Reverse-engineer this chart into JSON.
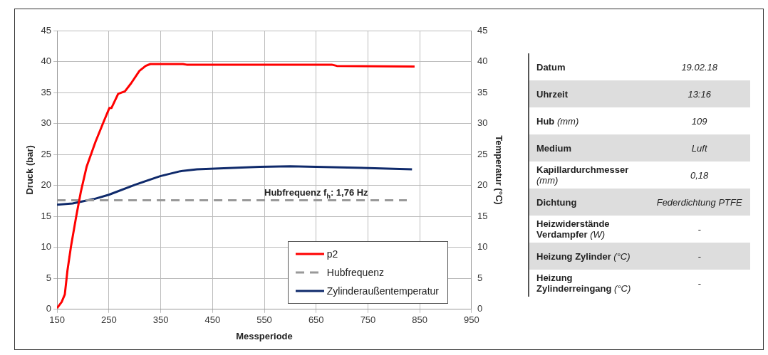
{
  "chart_data": [
    {
      "type": "line",
      "xlabel": "Messperiode",
      "ylabel": "Druck (bar)",
      "y2label": "Temperatur (°C)",
      "xlim": [
        150,
        950
      ],
      "xticks": [
        150,
        250,
        350,
        450,
        550,
        650,
        750,
        850,
        950
      ],
      "ylim": [
        0,
        45
      ],
      "yticks": [
        0,
        5,
        10,
        15,
        20,
        25,
        30,
        35,
        40,
        45
      ],
      "y2lim": [
        0,
        45
      ],
      "y2ticks": [
        0,
        5,
        10,
        15,
        20,
        25,
        30,
        35,
        40,
        45
      ],
      "grid": true,
      "legend": "bottom right",
      "marker": "none",
      "annotations": [
        {
          "text": "Hubfrequenz f$_{h}$: 1,76 Hz",
          "x": 550,
          "y": 17.6
        }
      ],
      "series": [
        {
          "name": "p2",
          "color": "#ff0000",
          "x": [
            150,
            159,
            165,
            170,
            177,
            187,
            196,
            207,
            224,
            240,
            251,
            255,
            268,
            281,
            293,
            309,
            321,
            330,
            393,
            400,
            680,
            690,
            840
          ],
          "values": [
            0.2,
            1.2,
            2.4,
            6.2,
            10.2,
            15,
            19,
            23,
            27,
            30.3,
            32.5,
            32.5,
            34.8,
            35.2,
            36.5,
            38.5,
            39.3,
            39.6,
            39.6,
            39.5,
            39.5,
            39.3,
            39.2
          ]
        },
        {
          "name": "Hubfrequenz",
          "color": "#999999",
          "line_style": "dashed",
          "x": [
            150,
            825
          ],
          "values": [
            17.6,
            17.6
          ]
        },
        {
          "name": "Zylinderaußentemperatur",
          "color": "#0f2a6b",
          "x": [
            150,
            180,
            221,
            250,
            300,
            349,
            388,
            420,
            541,
            600,
            650,
            751,
            835
          ],
          "values": [
            16.9,
            17.1,
            17.8,
            18.5,
            20.1,
            21.5,
            22.3,
            22.6,
            23.0,
            23.1,
            23.0,
            22.8,
            22.6
          ]
        }
      ]
    },
    {
      "type": "other",
      "annotations": [
        "Datum",
        "19.02.18",
        "Uhrzeit",
        "13:16",
        "Hub (mm)",
        "109",
        "Medium",
        "Luft",
        "Kapillardurchmesser (mm)",
        "0,18",
        "Dichtung",
        "Federdichtung PTFE",
        "Heizwiderstände Verdampfer (W)",
        "-",
        "Heizung Zylinder (°C)",
        "-",
        "Heizung Zylinderreingang (°C)",
        "-"
      ]
    }
  ]
}
